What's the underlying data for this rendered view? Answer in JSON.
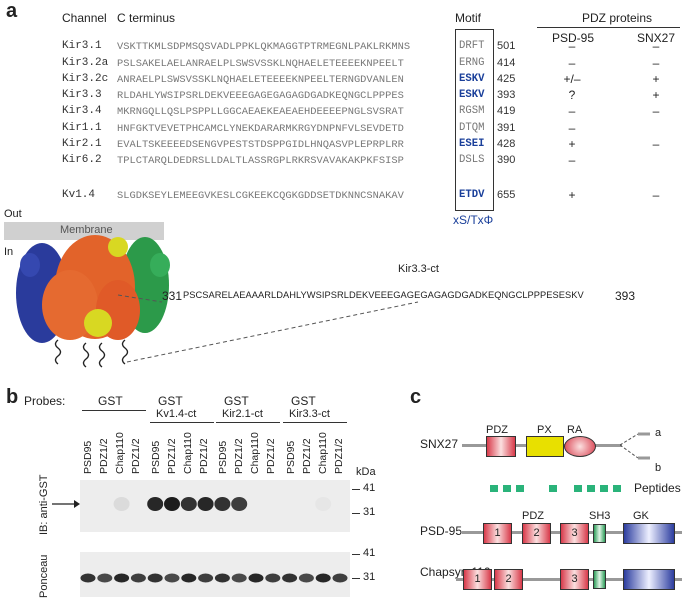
{
  "panel_a": {
    "label": "a",
    "channel_header": "Channel",
    "cterm_header": "C terminus",
    "motif_header": "Motif",
    "pdz_header": "PDZ proteins",
    "psd95_header": "PSD-95",
    "snx27_header": "SNX27",
    "rows": [
      {
        "name": "Kir3.1",
        "seq": "VSKTTKMLSDPMSQSVADLPPKLQKMAGGTPTRMEGNLPAKLRKMNS",
        "motif": "DRFT",
        "blue": false,
        "end": "501",
        "psd": "–",
        "snx": "–"
      },
      {
        "name": "Kir3.2a",
        "seq": "PSLSAKELAELANRAELPLSWSVSSKLNQHAELETEEEEKNPEELT",
        "motif": "ERNG",
        "blue": false,
        "end": "414",
        "psd": "–",
        "snx": "–"
      },
      {
        "name": "Kir3.2c",
        "seq": "ANRAELPLSWSVSSKLNQHAELETEEEEKNPEELTERNGDVANLEN",
        "motif": "ESKV",
        "blue": true,
        "end": "425",
        "psd": "+/–",
        "snx": "+"
      },
      {
        "name": "Kir3.3",
        "seq": "RLDAHLYWSIPSRLDEKVEEEGAGEGAGAGDGADKEQNGCLPPPES",
        "motif": "ESKV",
        "blue": true,
        "end": "393",
        "psd": "?",
        "snx": "+"
      },
      {
        "name": "Kir3.4",
        "seq": "MKRNGQLLQSLPSPPLLGGCAEAEKEAEAEHDEEEEPNGLSVSRAT",
        "motif": "RGSM",
        "blue": false,
        "end": "419",
        "psd": "–",
        "snx": "–"
      },
      {
        "name": "Kir1.1",
        "seq": "HNFGKTVEVETPHCAMCLYNEKDARARMKRGYDNPNFVLSEVDETD",
        "motif": "DTQM",
        "blue": false,
        "end": "391",
        "psd": "–",
        "snx": ""
      },
      {
        "name": "Kir2.1",
        "seq": "EVALTSKEEEEDSENGVPESTSTDSPPGIDLHNQASVPLEPRPLRR",
        "motif": "ESEI",
        "blue": true,
        "end": "428",
        "psd": "+",
        "snx": "–"
      },
      {
        "name": "Kir6.2",
        "seq": "TPLCTARQLDEDRSLLDALTLASSRGPLRKRSVAVAKAKPKFSISP",
        "motif": "DSLS",
        "blue": false,
        "end": "390",
        "psd": "–",
        "snx": ""
      },
      {
        "name": "Kv1.4",
        "seq": "SLGDKSEYLEMEEGVKESLCGKEEKCQGKGDDSETDKNNCSNAKAV",
        "motif": "ETDV",
        "blue": true,
        "end": "655",
        "psd": "+",
        "snx": "–"
      }
    ],
    "motif_consensus": "xS/TxΦ",
    "out_label": "Out",
    "in_label": "In",
    "membrane_label": "Membrane",
    "ct_title": "Kir3.3-ct",
    "ct_start": "331",
    "ct_seq": "PSCSARELAEAAARLDAHLYWSIPSRLDEKVEEEGAGEGAGAGDGADKEQNGCLPPPESESKV",
    "ct_end": "393"
  },
  "panel_b": {
    "label": "b",
    "probes_label": "Probes:",
    "groups": [
      {
        "line1": "GST",
        "line2": ""
      },
      {
        "line1": "GST",
        "line2": "Kv1.4-ct"
      },
      {
        "line1": "GST",
        "line2": "Kir2.1-ct"
      },
      {
        "line1": "GST",
        "line2": "Kir3.3-ct"
      }
    ],
    "lanes": [
      "PSD95",
      "PDZ1/2",
      "Chap110",
      "PDZ1/2"
    ],
    "kda_label": "kDa",
    "ib_label": "IB: anti-GST",
    "ponceau_label": "Ponceau",
    "mw_top": [
      "41",
      "31"
    ],
    "mw_bottom": [
      "41",
      "31"
    ],
    "band_intensity_ib": [
      0,
      0,
      0.08,
      0,
      0.9,
      0.95,
      0.85,
      0.9,
      0.85,
      0.8,
      0,
      0,
      0,
      0,
      0.03,
      0
    ],
    "band_intensity_ponceau": [
      0.85,
      0.75,
      0.9,
      0.8,
      0.85,
      0.75,
      0.9,
      0.8,
      0.85,
      0.75,
      0.9,
      0.8,
      0.85,
      0.75,
      0.9,
      0.8
    ]
  },
  "panel_c": {
    "label": "c",
    "snx27_label": "SNX27",
    "snx27_domains": [
      "PDZ",
      "PX",
      "RA"
    ],
    "branch_a": "a",
    "branch_b": "b",
    "peptides_label": "Peptides",
    "psd95_label": "PSD-95",
    "psd95_domain_titles": [
      "PDZ",
      "SH3",
      "GK"
    ],
    "chapsyn_label": "Chapsyn-110",
    "pdz_numbers": [
      "1",
      "2",
      "3"
    ]
  },
  "colors": {
    "blue_motif": "#1a3f9a",
    "pdz_red": "#d83a4a",
    "px_yellow": "#e8e000",
    "sh3_green": "#2e9d5a",
    "gk_blue": "#2c3d9f",
    "peptide_green": "#2ab37a"
  }
}
